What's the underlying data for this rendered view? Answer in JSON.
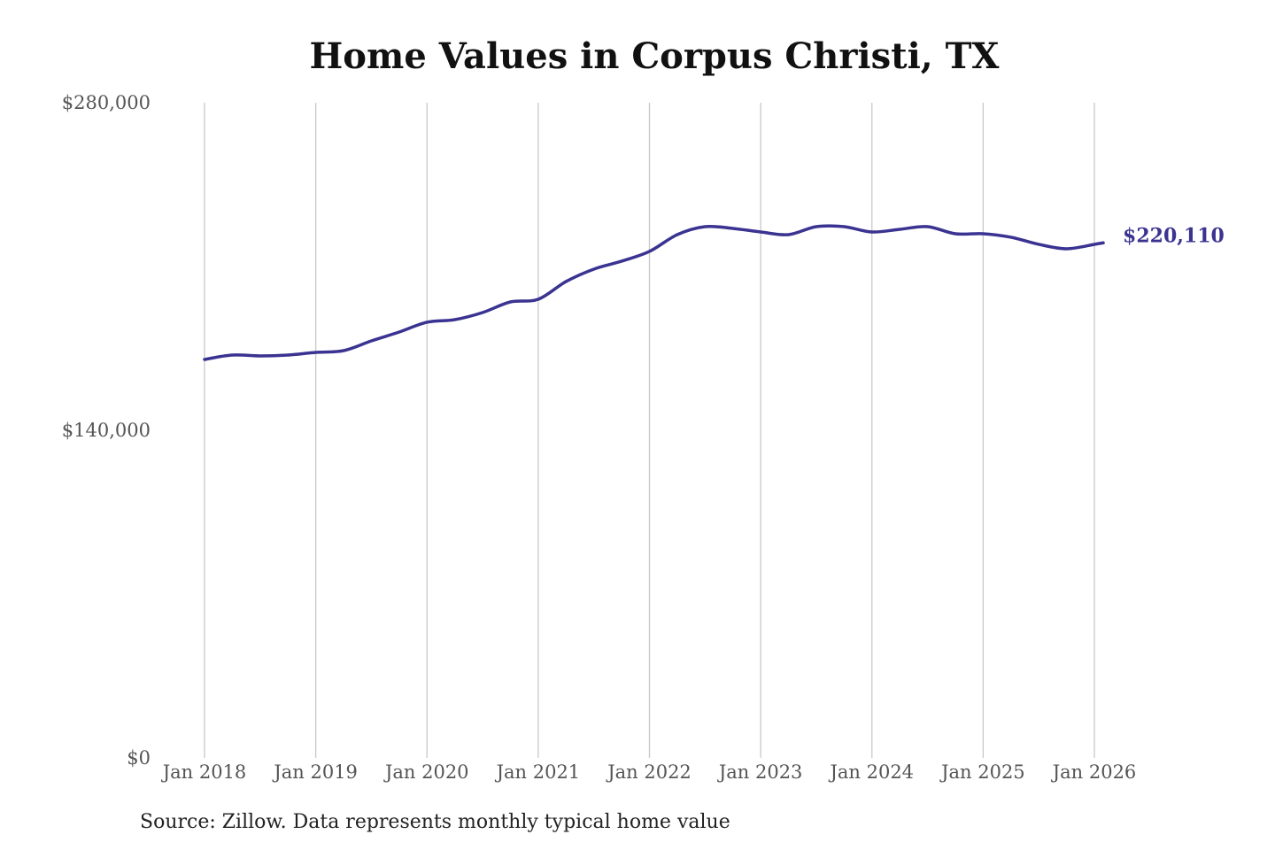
{
  "chart_data": {
    "type": "line",
    "title": "Home Values in Corpus Christi, TX",
    "source": "Source: Zillow. Data represents monthly typical home value",
    "xlabel": "",
    "ylabel": "",
    "ylim": [
      0,
      280000
    ],
    "xlim": [
      2018.0,
      2026.0
    ],
    "grid": "vertical",
    "y_ticks": [
      {
        "value": 0,
        "label": "$0"
      },
      {
        "value": 140000,
        "label": "$140,000"
      },
      {
        "value": 280000,
        "label": "$280,000"
      }
    ],
    "x_ticks": [
      {
        "value": 2018,
        "label": "Jan 2018"
      },
      {
        "value": 2019,
        "label": "Jan 2019"
      },
      {
        "value": 2020,
        "label": "Jan 2020"
      },
      {
        "value": 2021,
        "label": "Jan 2021"
      },
      {
        "value": 2022,
        "label": "Jan 2022"
      },
      {
        "value": 2023,
        "label": "Jan 2023"
      },
      {
        "value": 2024,
        "label": "Jan 2024"
      },
      {
        "value": 2025,
        "label": "Jan 2025"
      },
      {
        "value": 2026,
        "label": "Jan 2026"
      }
    ],
    "series": [
      {
        "name": "Typical home value",
        "color": "#3a3391",
        "end_label": "$220,110",
        "x": [
          2018.0,
          2018.25,
          2018.5,
          2018.75,
          2019.0,
          2019.25,
          2019.5,
          2019.75,
          2020.0,
          2020.25,
          2020.5,
          2020.75,
          2021.0,
          2021.25,
          2021.5,
          2021.75,
          2022.0,
          2022.25,
          2022.5,
          2022.75,
          2023.0,
          2023.25,
          2023.5,
          2023.75,
          2024.0,
          2024.25,
          2024.5,
          2024.75,
          2025.0,
          2025.25,
          2025.5,
          2025.75,
          2026.0,
          2026.08
        ],
        "values": [
          170270,
          172170,
          171790,
          172170,
          173300,
          174060,
          178220,
          182000,
          186170,
          187300,
          190330,
          194870,
          196000,
          203580,
          208880,
          212280,
          216440,
          223630,
          227040,
          226280,
          224770,
          223630,
          227040,
          227040,
          224770,
          225900,
          227040,
          224010,
          224010,
          222500,
          219470,
          217580,
          219470,
          220110
        ]
      }
    ]
  }
}
